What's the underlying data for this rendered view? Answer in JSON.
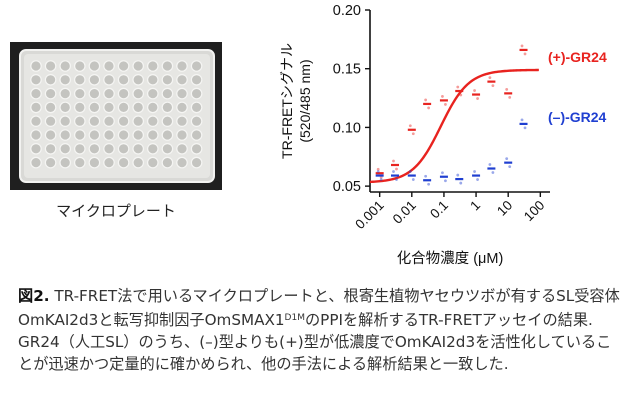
{
  "photo": {
    "caption": "マイクロプレート",
    "plate_rows": 8,
    "plate_cols": 12
  },
  "chart_data": {
    "type": "scatter",
    "ylabel_line1": "TR-FRETシグナル",
    "ylabel_line2": "(520/485 nm)",
    "xlabel": "化合物濃度 (μM)",
    "x_scale": "log",
    "xlim": [
      0.0005,
      200
    ],
    "ylim": [
      0.045,
      0.2
    ],
    "x_ticks": [
      0.001,
      0.01,
      0.1,
      1,
      10,
      100
    ],
    "x_tick_labels": [
      "0.001",
      "0.01",
      "0.1",
      "1",
      "10",
      "100"
    ],
    "y_ticks": [
      0.05,
      0.1,
      0.15,
      0.2
    ],
    "y_tick_labels": [
      "0.05",
      "0.10",
      "0.15",
      "0.20"
    ],
    "series": [
      {
        "name": "(+)-GR24",
        "color": "#e8231f",
        "fit_curve": true,
        "points": [
          {
            "x": 0.001,
            "y": 0.061
          },
          {
            "x": 0.003,
            "y": 0.068
          },
          {
            "x": 0.01,
            "y": 0.098
          },
          {
            "x": 0.03,
            "y": 0.12
          },
          {
            "x": 0.1,
            "y": 0.123
          },
          {
            "x": 0.3,
            "y": 0.131
          },
          {
            "x": 1,
            "y": 0.128
          },
          {
            "x": 3,
            "y": 0.139
          },
          {
            "x": 10,
            "y": 0.129
          },
          {
            "x": 30,
            "y": 0.166
          }
        ]
      },
      {
        "name": "(–)-GR24",
        "color": "#1f3fd1",
        "fit_curve": false,
        "points": [
          {
            "x": 0.001,
            "y": 0.059
          },
          {
            "x": 0.003,
            "y": 0.059
          },
          {
            "x": 0.01,
            "y": 0.059
          },
          {
            "x": 0.03,
            "y": 0.055
          },
          {
            "x": 0.1,
            "y": 0.058
          },
          {
            "x": 0.3,
            "y": 0.056
          },
          {
            "x": 1,
            "y": 0.059
          },
          {
            "x": 3,
            "y": 0.065
          },
          {
            "x": 10,
            "y": 0.07
          },
          {
            "x": 30,
            "y": 0.103
          }
        ]
      }
    ]
  },
  "caption": {
    "label": "図2.",
    "text_1": " TR-FRET法で用いるマイクロプレートと、根寄生植物ヤセウツボが有するSL受容体OmKAI2d3と転写抑制因子OmSMAX1",
    "sup": "D1M",
    "text_2": "のPPIを解析するTR-FRETアッセイの結果. GR24（人工SL）のうち、(–)型よりも(+)型が低濃度でOmKAI2d3を活性化していることが迅速かつ定量的に確かめられ、他の手法による解析結果と一致した."
  }
}
